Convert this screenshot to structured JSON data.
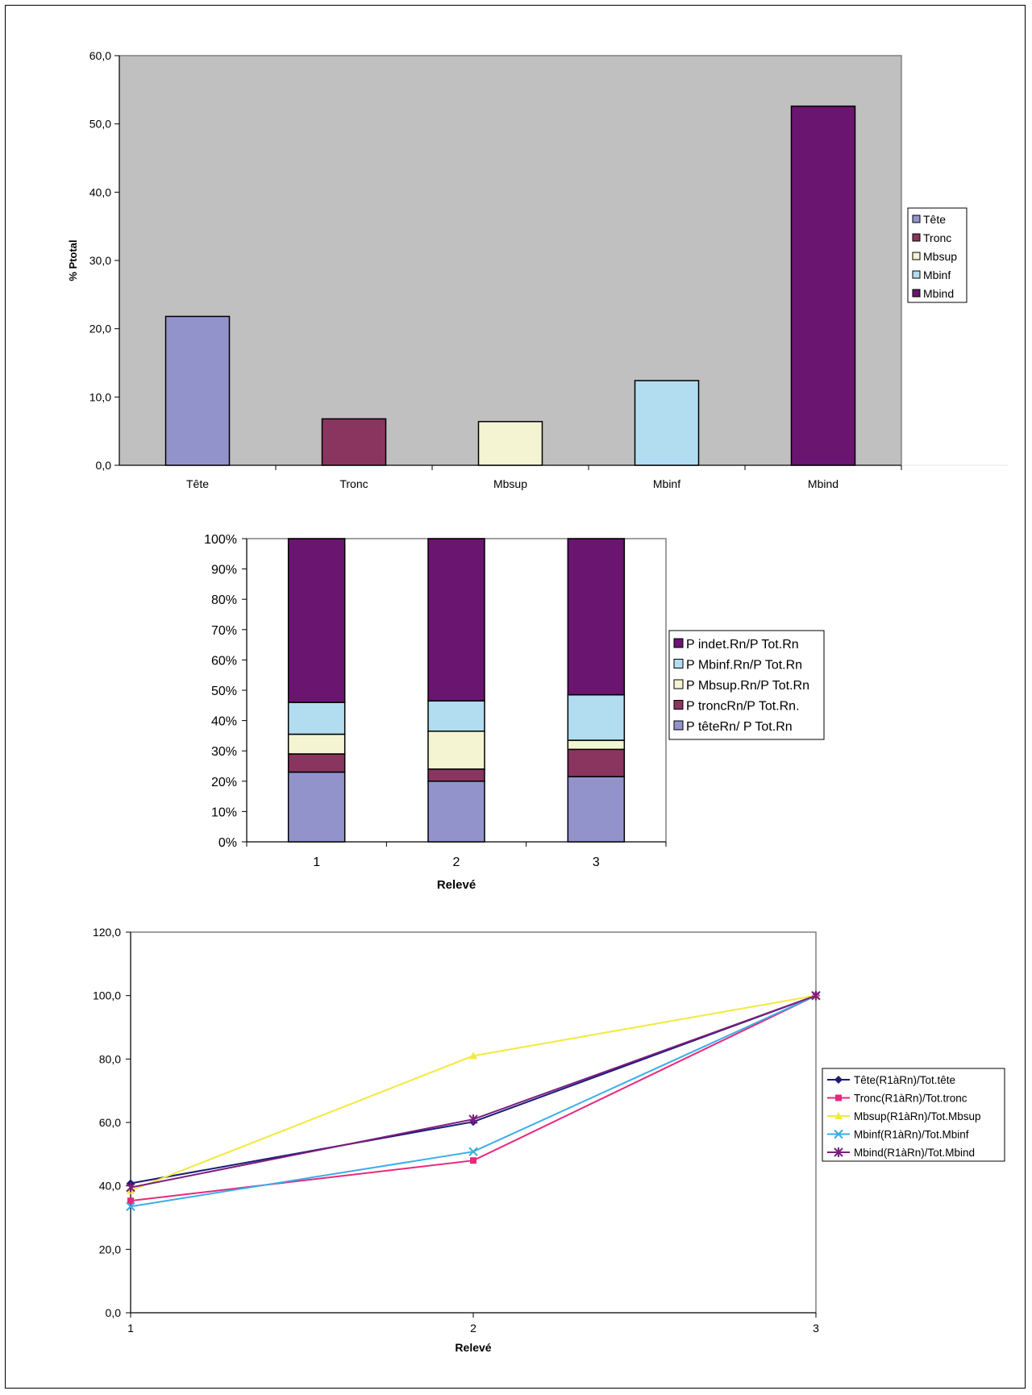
{
  "chart_data": [
    {
      "type": "bar",
      "title": "",
      "xlabel": "",
      "ylabel": "% Ptotal",
      "categories": [
        "Tête",
        "Tronc",
        "Mbsup",
        "Mbinf",
        "Mbind"
      ],
      "values": [
        21.8,
        6.8,
        6.4,
        12.4,
        52.6
      ],
      "colors": [
        "#9393cc",
        "#8a3560",
        "#f4f4d2",
        "#b2dcf0",
        "#6a1570"
      ],
      "ylim": [
        0,
        60
      ],
      "yticks": [
        "0,0",
        "10,0",
        "20,0",
        "30,0",
        "40,0",
        "50,0",
        "60,0"
      ],
      "legend": [
        "Tête",
        "Tronc",
        "Mbsup",
        "Mbinf",
        "Mbind"
      ],
      "legend_position": "right",
      "background": "#c0c0c0",
      "grid": false
    },
    {
      "type": "bar",
      "stacked": "percent",
      "title": "",
      "xlabel": "Relevé",
      "ylabel": "",
      "categories": [
        "1",
        "2",
        "3"
      ],
      "series": [
        {
          "name": "P têteRn/ P Tot.Rn",
          "color": "#9393cc",
          "values": [
            23,
            20,
            21.5
          ]
        },
        {
          "name": "P troncRn/P Tot.Rn.",
          "color": "#8a3560",
          "values": [
            6,
            4,
            9
          ]
        },
        {
          "name": "P Mbsup.Rn/P Tot.Rn",
          "color": "#f4f4d2",
          "values": [
            6.5,
            12.5,
            3
          ]
        },
        {
          "name": "P Mbinf.Rn/P Tot.Rn",
          "color": "#b2dcf0",
          "values": [
            10.5,
            10,
            15
          ]
        },
        {
          "name": "P indet.Rn/P Tot.Rn",
          "color": "#6a1570",
          "values": [
            54,
            53.5,
            51.5
          ]
        }
      ],
      "ylim": [
        0,
        100
      ],
      "yticks": [
        "0%",
        "10%",
        "20%",
        "30%",
        "40%",
        "50%",
        "60%",
        "70%",
        "80%",
        "90%",
        "100%"
      ],
      "legend_position": "right",
      "grid": false
    },
    {
      "type": "line",
      "title": "",
      "xlabel": "Relevé",
      "ylabel": "",
      "x": [
        "1",
        "2",
        "3"
      ],
      "series": [
        {
          "name": "Tête(R1àRn)/Tot.tête",
          "color": "#1a1a78",
          "marker": "diamond",
          "values": [
            40.8,
            60.2,
            100
          ]
        },
        {
          "name": "Tronc(R1àRn)/Tot.tronc",
          "color": "#e8287c",
          "marker": "square",
          "values": [
            35.3,
            48.0,
            100
          ]
        },
        {
          "name": "Mbsup(R1àRn)/Tot.Mbsup",
          "color": "#f2ea3a",
          "marker": "triangle",
          "values": [
            38.5,
            81.0,
            100
          ]
        },
        {
          "name": "Mbinf(R1àRn)/Tot.Mbinf",
          "color": "#3aaee8",
          "marker": "x",
          "values": [
            33.5,
            50.8,
            100
          ]
        },
        {
          "name": "Mbind(R1àRn)/Tot.Mbind",
          "color": "#7a1e7e",
          "marker": "star",
          "values": [
            39.5,
            61.0,
            100
          ]
        }
      ],
      "ylim": [
        0,
        120
      ],
      "yticks": [
        "0,0",
        "20,0",
        "40,0",
        "60,0",
        "80,0",
        "100,0",
        "120,0"
      ],
      "legend_position": "right",
      "grid": false
    }
  ]
}
